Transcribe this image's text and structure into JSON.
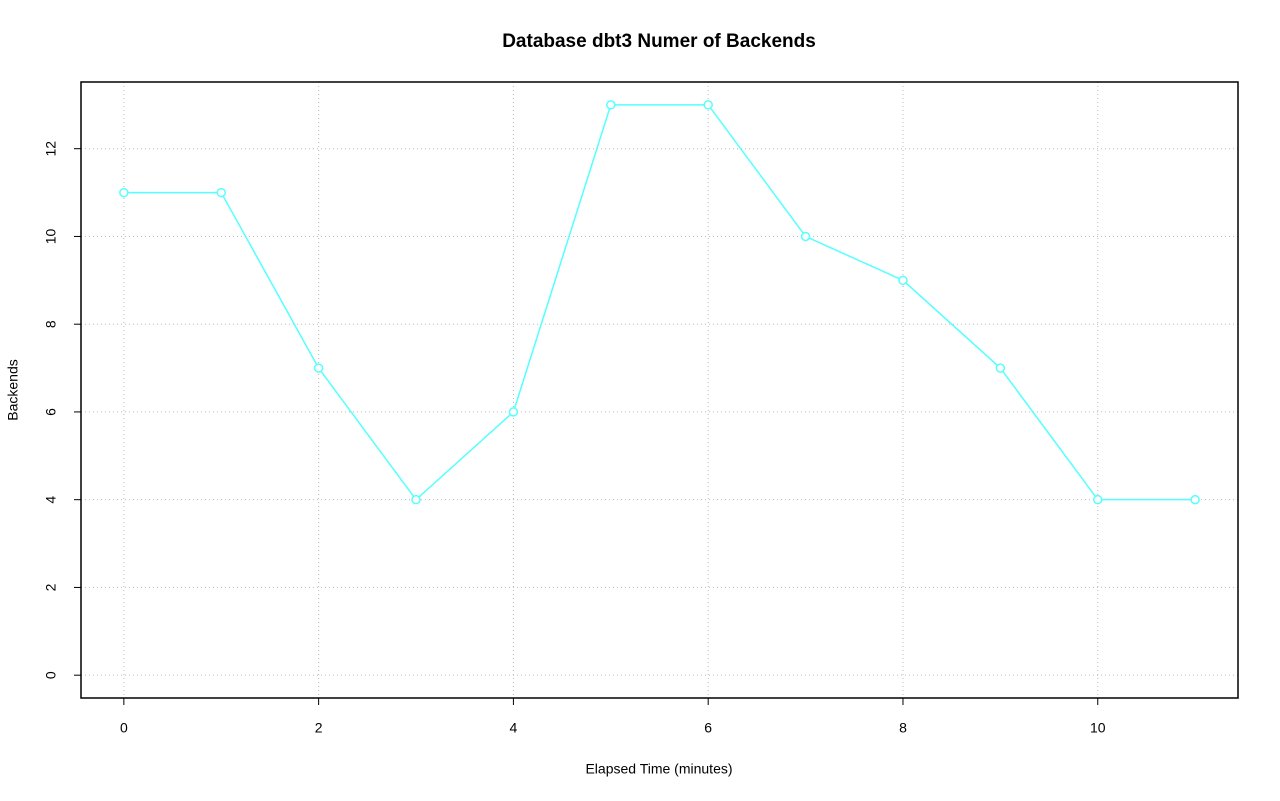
{
  "chart_data": {
    "type": "line",
    "title": "Database dbt3 Numer of Backends",
    "x_label": "Elapsed Time (minutes)",
    "y_label": "Backends",
    "x": [
      0,
      1,
      2,
      3,
      4,
      5,
      6,
      7,
      8,
      9,
      10,
      11
    ],
    "series": [
      {
        "name": "Backends",
        "color": "#55ffff",
        "values": [
          11,
          11,
          7,
          4,
          6,
          13,
          13,
          10,
          9,
          7,
          4,
          4
        ]
      }
    ],
    "xlim": [
      -0.44,
      11.44
    ],
    "ylim": [
      -0.52,
      13.52
    ],
    "xticks": [
      0,
      2,
      4,
      6,
      8,
      10
    ],
    "yticks": [
      0,
      2,
      4,
      6,
      8,
      10,
      12
    ],
    "grid": true
  }
}
